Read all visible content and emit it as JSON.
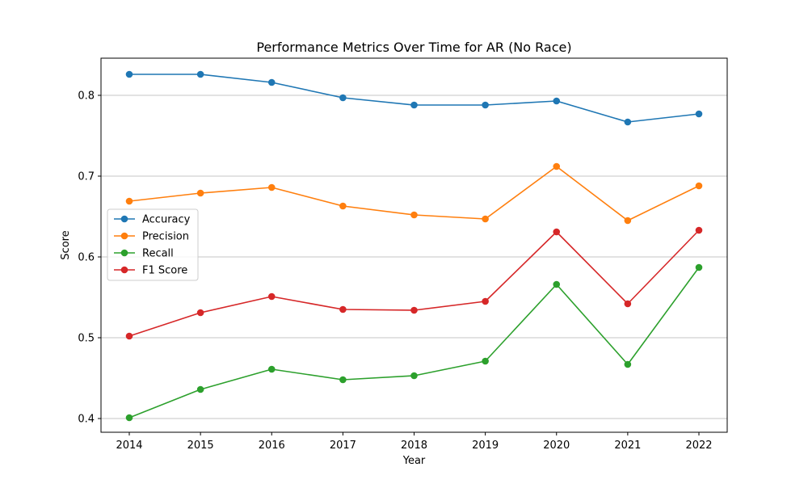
{
  "chart_data": {
    "type": "line",
    "title": "Performance Metrics Over Time for AR (No Race)",
    "xlabel": "Year",
    "ylabel": "Score",
    "x": [
      "2014",
      "2015",
      "2016",
      "2017",
      "2018",
      "2019",
      "2020",
      "2021",
      "2022"
    ],
    "ylim": [
      0.383,
      0.846
    ],
    "yticks": [
      "0.4",
      "0.5",
      "0.6",
      "0.7",
      "0.8"
    ],
    "ytick_values": [
      0.4,
      0.5,
      0.6,
      0.7,
      0.8
    ],
    "grid": "horizontal",
    "legend_position": "center-left",
    "series": [
      {
        "name": "Accuracy",
        "color": "#1f77b4",
        "values": [
          0.826,
          0.826,
          0.816,
          0.797,
          0.788,
          0.788,
          0.793,
          0.767,
          0.777
        ]
      },
      {
        "name": "Precision",
        "color": "#ff7f0e",
        "values": [
          0.669,
          0.679,
          0.686,
          0.663,
          0.652,
          0.647,
          0.712,
          0.645,
          0.688
        ]
      },
      {
        "name": "Recall",
        "color": "#2ca02c",
        "values": [
          0.401,
          0.436,
          0.461,
          0.448,
          0.453,
          0.471,
          0.566,
          0.467,
          0.587
        ]
      },
      {
        "name": "F1 Score",
        "color": "#d62728",
        "values": [
          0.502,
          0.531,
          0.551,
          0.535,
          0.534,
          0.545,
          0.631,
          0.542,
          0.633
        ]
      }
    ]
  }
}
